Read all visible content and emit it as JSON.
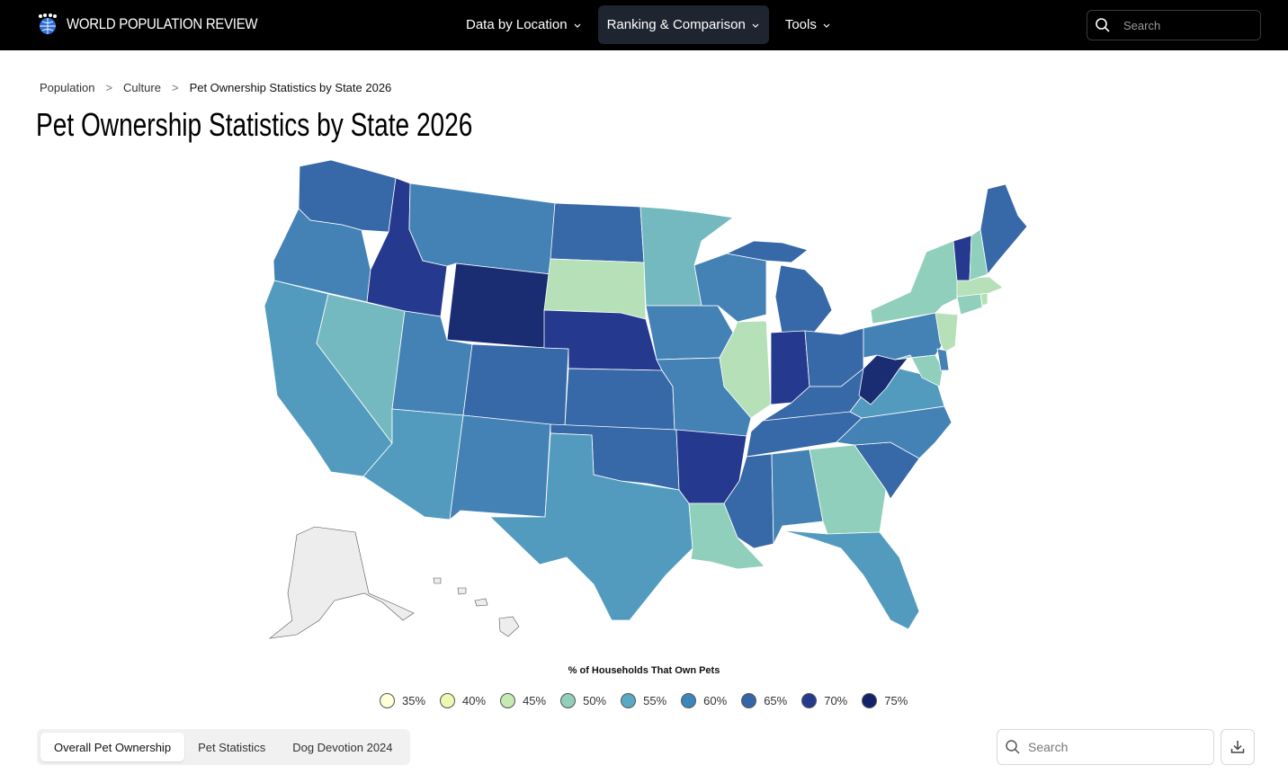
{
  "header": {
    "logo_text": "WORLD POPULATION REVIEW",
    "nav": [
      {
        "label": "Data by Location",
        "active": false
      },
      {
        "label": "Ranking & Comparison",
        "active": true
      },
      {
        "label": "Tools",
        "active": false
      }
    ],
    "search_placeholder": "Search"
  },
  "breadcrumb": {
    "items": [
      "Population",
      "Culture"
    ],
    "separator": ">",
    "current": "Pet Ownership Statistics by State 2026"
  },
  "title": "Pet Ownership Statistics by State 2026",
  "legend": {
    "title": "% of Households That Own Pets",
    "items": [
      {
        "label": "35%",
        "color": "#ffffd9"
      },
      {
        "label": "40%",
        "color": "#edf8b1"
      },
      {
        "label": "45%",
        "color": "#c7e9b4"
      },
      {
        "label": "50%",
        "color": "#8fcfbb"
      },
      {
        "label": "55%",
        "color": "#58a9c3"
      },
      {
        "label": "60%",
        "color": "#3d86ba"
      },
      {
        "label": "65%",
        "color": "#3465a6"
      },
      {
        "label": "70%",
        "color": "#253a8e"
      },
      {
        "label": "75%",
        "color": "#13226b"
      }
    ]
  },
  "map": {
    "colors": {
      "c45": "#b6e0b8",
      "c50": "#8fcfbb",
      "c55_light": "#74b9bf",
      "c55": "#529bbe",
      "c60": "#4482b6",
      "c65": "#3768a8",
      "c70": "#253a8e",
      "c75": "#1a2c72",
      "nodata": "#ededed"
    }
  },
  "tabs": [
    {
      "label": "Overall Pet Ownership",
      "active": true
    },
    {
      "label": "Pet Statistics",
      "active": false
    },
    {
      "label": "Dog Devotion 2024",
      "active": false
    }
  ],
  "table_search_placeholder": "Search",
  "icons": {
    "logo": "globe-people-icon",
    "search": "search-icon",
    "chevron": "chevron-down-icon",
    "download": "download-icon"
  }
}
